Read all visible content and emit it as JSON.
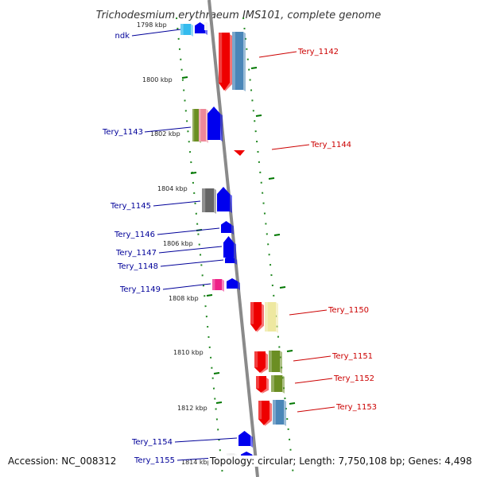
{
  "title": "Trichodesmium erythraeum IMS101, complete genome",
  "accession": "Accession: NC_008312",
  "summary": "Topology: circular; Length: 7,750,108 bp; Genes: 4,498",
  "colors": {
    "forward_label": "#cc0000",
    "reverse_label": "#000099",
    "tick": "#007700",
    "backbone": "#888888"
  },
  "ruler": [
    {
      "text": "1798 kbp"
    },
    {
      "text": "1800 kbp"
    },
    {
      "text": "1802 kbp"
    },
    {
      "text": "1804 kbp"
    },
    {
      "text": "1806 kbp"
    },
    {
      "text": "1808 kbp"
    },
    {
      "text": "1810 kbp"
    },
    {
      "text": "1812 kbp"
    },
    {
      "text": "1814 kbp"
    }
  ],
  "gene_labels": [
    {
      "text": "ndk",
      "strand": "reverse"
    },
    {
      "text": "Tery_1142",
      "strand": "forward"
    },
    {
      "text": "Tery_1143",
      "strand": "reverse"
    },
    {
      "text": "Tery_1144",
      "strand": "forward"
    },
    {
      "text": "Tery_1145",
      "strand": "reverse"
    },
    {
      "text": "Tery_1146",
      "strand": "reverse"
    },
    {
      "text": "Tery_1147",
      "strand": "reverse"
    },
    {
      "text": "Tery_1148",
      "strand": "reverse"
    },
    {
      "text": "Tery_1149",
      "strand": "reverse"
    },
    {
      "text": "Tery_1150",
      "strand": "forward"
    },
    {
      "text": "Tery_1151",
      "strand": "forward"
    },
    {
      "text": "Tery_1152",
      "strand": "forward"
    },
    {
      "text": "Tery_1153",
      "strand": "forward"
    },
    {
      "text": "Tery_1154",
      "strand": "reverse"
    },
    {
      "text": "Tery_1155",
      "strand": "reverse"
    }
  ]
}
